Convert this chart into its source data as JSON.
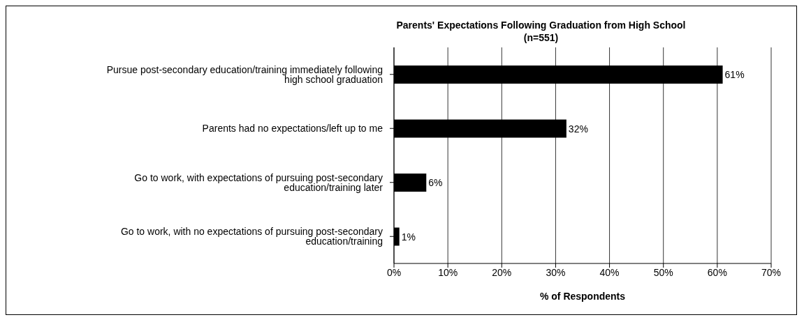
{
  "chart_data": {
    "type": "bar",
    "orientation": "horizontal",
    "title": "Parents' Expectations Following Graduation from High School",
    "subtitle": "(n=551)",
    "xlabel": "% of Respondents",
    "categories": [
      "Pursue post-secondary education/training immediately following high school graduation",
      "Parents had no expectations/left up to me",
      "Go to work, with expectations of pursuing post-secondary education/training later",
      "Go to work, with no expectations of pursuing post-secondary education/training"
    ],
    "values": [
      61,
      32,
      6,
      1
    ],
    "color": "#000000",
    "value_labels": [
      "61%",
      "32%",
      "6%",
      "1%"
    ],
    "xlim": [
      0,
      70
    ],
    "xticks": [
      {
        "value": 0,
        "label": "0%"
      },
      {
        "value": 10,
        "label": "10%"
      },
      {
        "value": 20,
        "label": "20%"
      },
      {
        "value": 30,
        "label": "30%"
      },
      {
        "value": 40,
        "label": "40%"
      },
      {
        "value": 50,
        "label": "50%"
      },
      {
        "value": 60,
        "label": "60%"
      },
      {
        "value": 70,
        "label": "70%"
      }
    ],
    "grid": "x",
    "legend": false
  }
}
